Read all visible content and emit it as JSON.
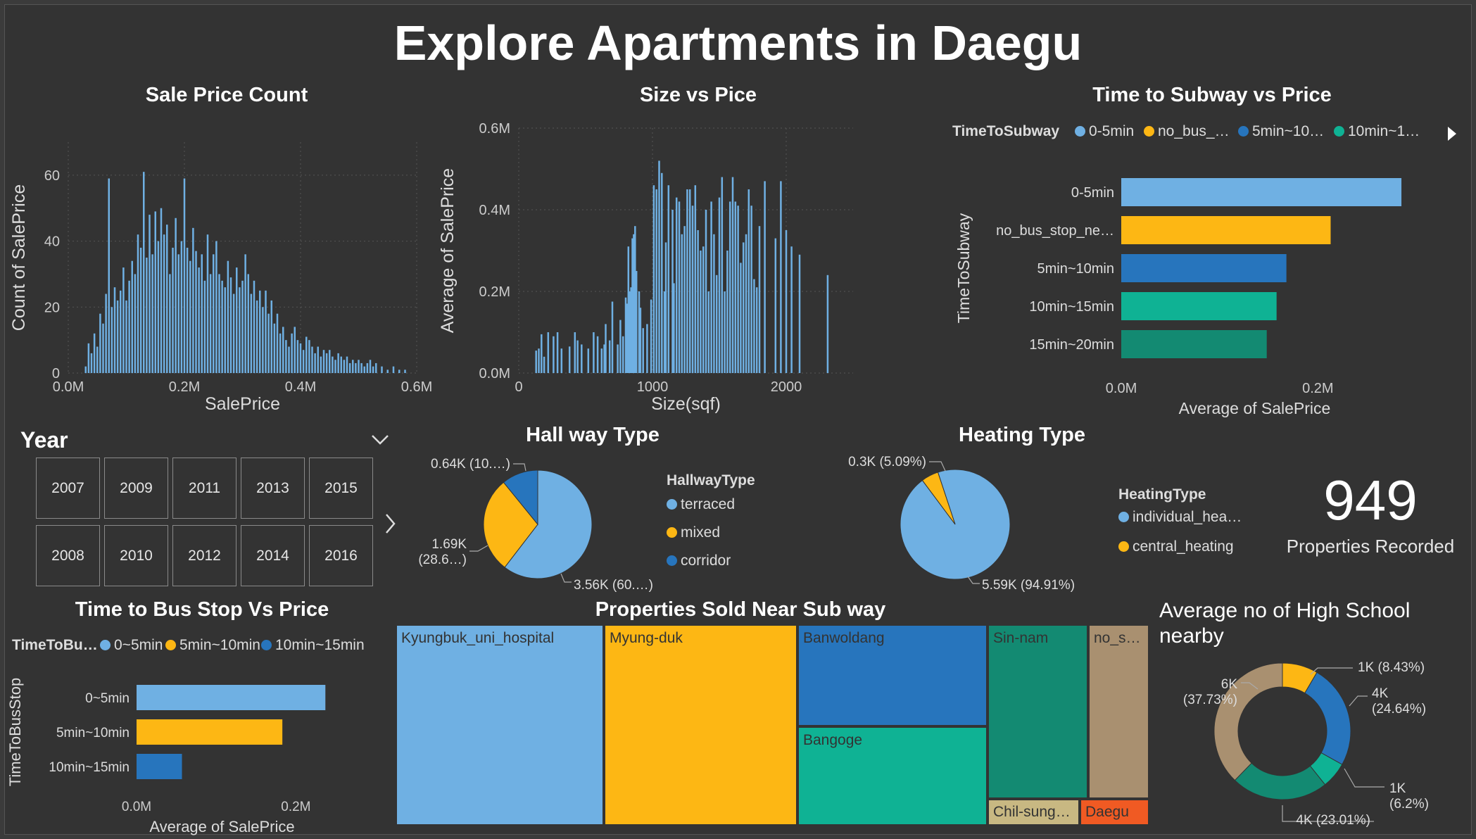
{
  "page_title": "Explore Apartments in Daegu",
  "colors": {
    "blue_light": "#6fb0e3",
    "yellow": "#fdb714",
    "blue": "#2775bd",
    "teal": "#0fb294",
    "dark_teal": "#138a72",
    "tan": "#a99070",
    "khaki": "#c8b882",
    "orange": "#f05a23"
  },
  "chart_data": [
    {
      "id": "sale-price-count",
      "type": "bar",
      "title": "Sale Price Count",
      "xlabel": "SalePrice",
      "ylabel": "Count of SalePrice",
      "xlim": [
        0,
        600000
      ],
      "ylim": [
        0,
        70
      ],
      "x_ticks": [
        "0.0M",
        "0.2M",
        "0.4M",
        "0.6M"
      ],
      "y_ticks": [
        "0",
        "20",
        "40",
        "60"
      ],
      "note_series": "histogram of sale prices (approximate)",
      "x": [
        30000,
        35000,
        40000,
        45000,
        50000,
        55000,
        60000,
        65000,
        70000,
        75000,
        80000,
        85000,
        90000,
        95000,
        100000,
        105000,
        110000,
        115000,
        120000,
        125000,
        130000,
        135000,
        140000,
        145000,
        150000,
        155000,
        160000,
        165000,
        170000,
        175000,
        180000,
        185000,
        190000,
        195000,
        200000,
        205000,
        210000,
        215000,
        220000,
        225000,
        230000,
        235000,
        240000,
        245000,
        250000,
        255000,
        260000,
        265000,
        270000,
        275000,
        280000,
        285000,
        290000,
        295000,
        300000,
        305000,
        310000,
        315000,
        320000,
        325000,
        330000,
        335000,
        340000,
        345000,
        350000,
        355000,
        360000,
        365000,
        370000,
        375000,
        380000,
        385000,
        390000,
        395000,
        400000,
        405000,
        410000,
        415000,
        420000,
        425000,
        430000,
        435000,
        440000,
        445000,
        450000,
        455000,
        460000,
        465000,
        470000,
        475000,
        480000,
        485000,
        490000,
        495000,
        500000,
        505000,
        510000,
        515000,
        520000,
        525000,
        530000,
        540000,
        550000,
        560000,
        570000,
        580000
      ],
      "values": [
        2,
        9,
        6,
        12,
        8,
        18,
        15,
        24,
        59,
        20,
        26,
        22,
        25,
        32,
        22,
        28,
        34,
        30,
        42,
        38,
        61,
        35,
        48,
        36,
        49,
        40,
        50,
        42,
        45,
        30,
        38,
        47,
        36,
        40,
        59,
        38,
        34,
        44,
        37,
        32,
        36,
        28,
        42,
        30,
        36,
        40,
        30,
        28,
        26,
        34,
        29,
        24,
        32,
        26,
        28,
        36,
        30,
        24,
        28,
        22,
        25,
        20,
        25,
        18,
        22,
        15,
        18,
        12,
        14,
        10,
        8,
        12,
        14,
        10,
        9,
        7,
        11,
        10,
        8,
        6,
        8,
        5,
        7,
        6,
        7,
        5,
        4,
        6,
        5,
        4,
        5,
        3,
        4,
        3,
        4,
        3,
        2,
        3,
        4,
        2,
        3,
        2,
        1,
        2,
        1,
        1
      ]
    },
    {
      "id": "size-vs-price",
      "type": "bar",
      "title": "Size vs Pice",
      "xlabel": "Size(sqf)",
      "ylabel": "Average of SalePrice",
      "xlim": [
        0,
        2500
      ],
      "ylim": [
        0,
        600000
      ],
      "x_ticks": [
        "0",
        "1000",
        "2000"
      ],
      "y_ticks": [
        "0.0M",
        "0.2M",
        "0.4M",
        "0.6M"
      ],
      "x": [
        130,
        150,
        170,
        190,
        220,
        260,
        290,
        320,
        380,
        420,
        440,
        470,
        520,
        560,
        590,
        620,
        640,
        650,
        680,
        700,
        740,
        760,
        780,
        800,
        810,
        820,
        830,
        840,
        850,
        860,
        870,
        880,
        900,
        910,
        930,
        960,
        990,
        1010,
        1030,
        1050,
        1070,
        1090,
        1100,
        1120,
        1150,
        1160,
        1180,
        1200,
        1220,
        1240,
        1260,
        1280,
        1300,
        1320,
        1340,
        1360,
        1380,
        1400,
        1420,
        1440,
        1460,
        1480,
        1500,
        1520,
        1540,
        1560,
        1580,
        1600,
        1620,
        1640,
        1660,
        1680,
        1700,
        1720,
        1740,
        1760,
        1780,
        1800,
        1840,
        1920,
        1960,
        2000,
        2040,
        2100,
        2310
      ],
      "values": [
        55000,
        60000,
        95000,
        40000,
        100000,
        90000,
        100000,
        60000,
        65000,
        100000,
        80000,
        70000,
        60000,
        100000,
        90000,
        60000,
        70000,
        120000,
        80000,
        175000,
        70000,
        130000,
        90000,
        185000,
        170000,
        310000,
        200000,
        210000,
        330000,
        340000,
        360000,
        250000,
        200000,
        160000,
        110000,
        120000,
        180000,
        460000,
        450000,
        520000,
        490000,
        200000,
        320000,
        460000,
        400000,
        220000,
        430000,
        420000,
        340000,
        360000,
        450000,
        450000,
        410000,
        460000,
        350000,
        300000,
        310000,
        400000,
        200000,
        420000,
        340000,
        240000,
        430000,
        480000,
        200000,
        300000,
        420000,
        480000,
        420000,
        410000,
        270000,
        320000,
        340000,
        450000,
        410000,
        230000,
        210000,
        360000,
        470000,
        330000,
        470000,
        350000,
        310000,
        290000,
        240000
      ]
    },
    {
      "id": "time-to-subway-vs-price",
      "type": "bar",
      "orientation": "horizontal",
      "title": "Time to Subway vs Price",
      "legend_title": "TimeToSubway",
      "legend_entries": [
        "0-5min",
        "no_bus_…",
        "5min~10…",
        "10min~1…"
      ],
      "xlabel": "Average of SalePrice",
      "ylabel": "TimeToSubway",
      "categories": [
        "0-5min",
        "no_bus_stop_ne…",
        "5min~10min",
        "10min~15min",
        "15min~20min"
      ],
      "values": [
        285000,
        213000,
        168000,
        158000,
        148000
      ],
      "xlim": [
        0,
        300000
      ],
      "x_ticks": [
        "0.0M",
        "0.2M"
      ]
    },
    {
      "id": "hall-way-type",
      "type": "pie",
      "title": "Hall way Type",
      "legend_title": "HallwayType",
      "categories": [
        "terraced",
        "mixed",
        "corridor"
      ],
      "values": [
        3560,
        1690,
        640
      ],
      "data_labels": [
        "3.56K (60.…)",
        "1.69K (28.6…)",
        "0.64K (10.…)"
      ]
    },
    {
      "id": "heating-type",
      "type": "pie",
      "title": "Heating Type",
      "legend_title": "HeatingType",
      "categories": [
        "individual_hea…",
        "central_heating"
      ],
      "values": [
        5590,
        300
      ],
      "data_labels": [
        "5.59K (94.91%)",
        "0.3K (5.09%)"
      ]
    },
    {
      "id": "time-to-bus-stop-vs-price",
      "type": "bar",
      "orientation": "horizontal",
      "title": "Time to Bus Stop Vs Price",
      "legend_title": "TimeToBu…",
      "legend_entries": [
        "0~5min",
        "5min~10min",
        "10min~15min"
      ],
      "xlabel": "Average of SalePrice",
      "ylabel": "TimeToBusStop",
      "categories": [
        "0~5min",
        "5min~10min",
        "10min~15min"
      ],
      "values": [
        237000,
        183000,
        57000
      ],
      "xlim": [
        0,
        250000
      ],
      "x_ticks": [
        "0.0M",
        "0.2M"
      ]
    },
    {
      "id": "properties-sold-near-subway",
      "type": "treemap",
      "title": "Properties Sold Near Sub way",
      "categories": [
        "Kyungbuk_uni_hospital",
        "Myung-duk",
        "Banwoldang",
        "Bangoge",
        "Sin-nam",
        "no_s…",
        "Chil-sung…",
        "Daegu"
      ],
      "values": [
        1650,
        1520,
        790,
        790,
        1150,
        720,
        230,
        180
      ]
    },
    {
      "id": "avg-high-school-nearby",
      "type": "pie",
      "donut": true,
      "title": "Average no of High School nearby",
      "values": [
        8.43,
        24.64,
        6.2,
        23.01,
        37.73
      ],
      "data_labels": [
        "1K (8.43%)",
        "4K (24.64%)",
        "1K (6.2%)",
        "4K (23.01%)",
        "6K (37.73%)"
      ]
    }
  ],
  "year_slicer": {
    "title": "Year",
    "years": [
      "2007",
      "2009",
      "2011",
      "2013",
      "2015",
      "2008",
      "2010",
      "2012",
      "2014",
      "2016"
    ]
  },
  "kpi": {
    "value": "949",
    "label": "Properties Recorded"
  }
}
